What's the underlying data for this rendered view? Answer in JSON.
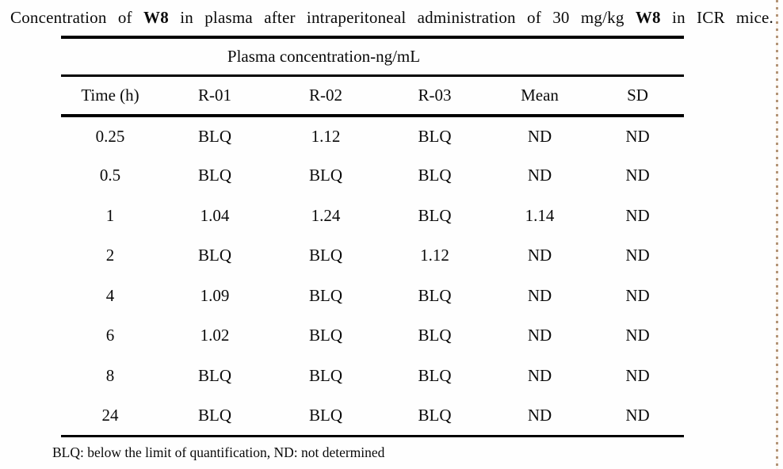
{
  "title": {
    "seg1": "Concentration of",
    "seg2": "W8",
    "seg3": "in plasma after intraperitoneal administration of 30 mg/kg",
    "seg4": "W8",
    "seg5": "in ICR mice."
  },
  "table": {
    "group_header": "Plasma concentration-ng/mL",
    "columns": [
      "Time (h)",
      "R-01",
      "R-02",
      "R-03",
      "Mean",
      "SD"
    ],
    "rows": [
      [
        "0.25",
        "BLQ",
        "1.12",
        "BLQ",
        "ND",
        "ND"
      ],
      [
        "0.5",
        "BLQ",
        "BLQ",
        "BLQ",
        "ND",
        "ND"
      ],
      [
        "1",
        "1.04",
        "1.24",
        "BLQ",
        "1.14",
        "ND"
      ],
      [
        "2",
        "BLQ",
        "BLQ",
        "1.12",
        "ND",
        "ND"
      ],
      [
        "4",
        "1.09",
        "BLQ",
        "BLQ",
        "ND",
        "ND"
      ],
      [
        "6",
        "1.02",
        "BLQ",
        "BLQ",
        "ND",
        "ND"
      ],
      [
        "8",
        "BLQ",
        "BLQ",
        "BLQ",
        "ND",
        "ND"
      ],
      [
        "24",
        "BLQ",
        "BLQ",
        "BLQ",
        "ND",
        "ND"
      ]
    ]
  },
  "footnote": "BLQ: below the limit of quantification, ND: not determined",
  "colors": {
    "rule": "#000000",
    "scan_edge_dash": "#9a704a",
    "background": "#fefefe"
  }
}
